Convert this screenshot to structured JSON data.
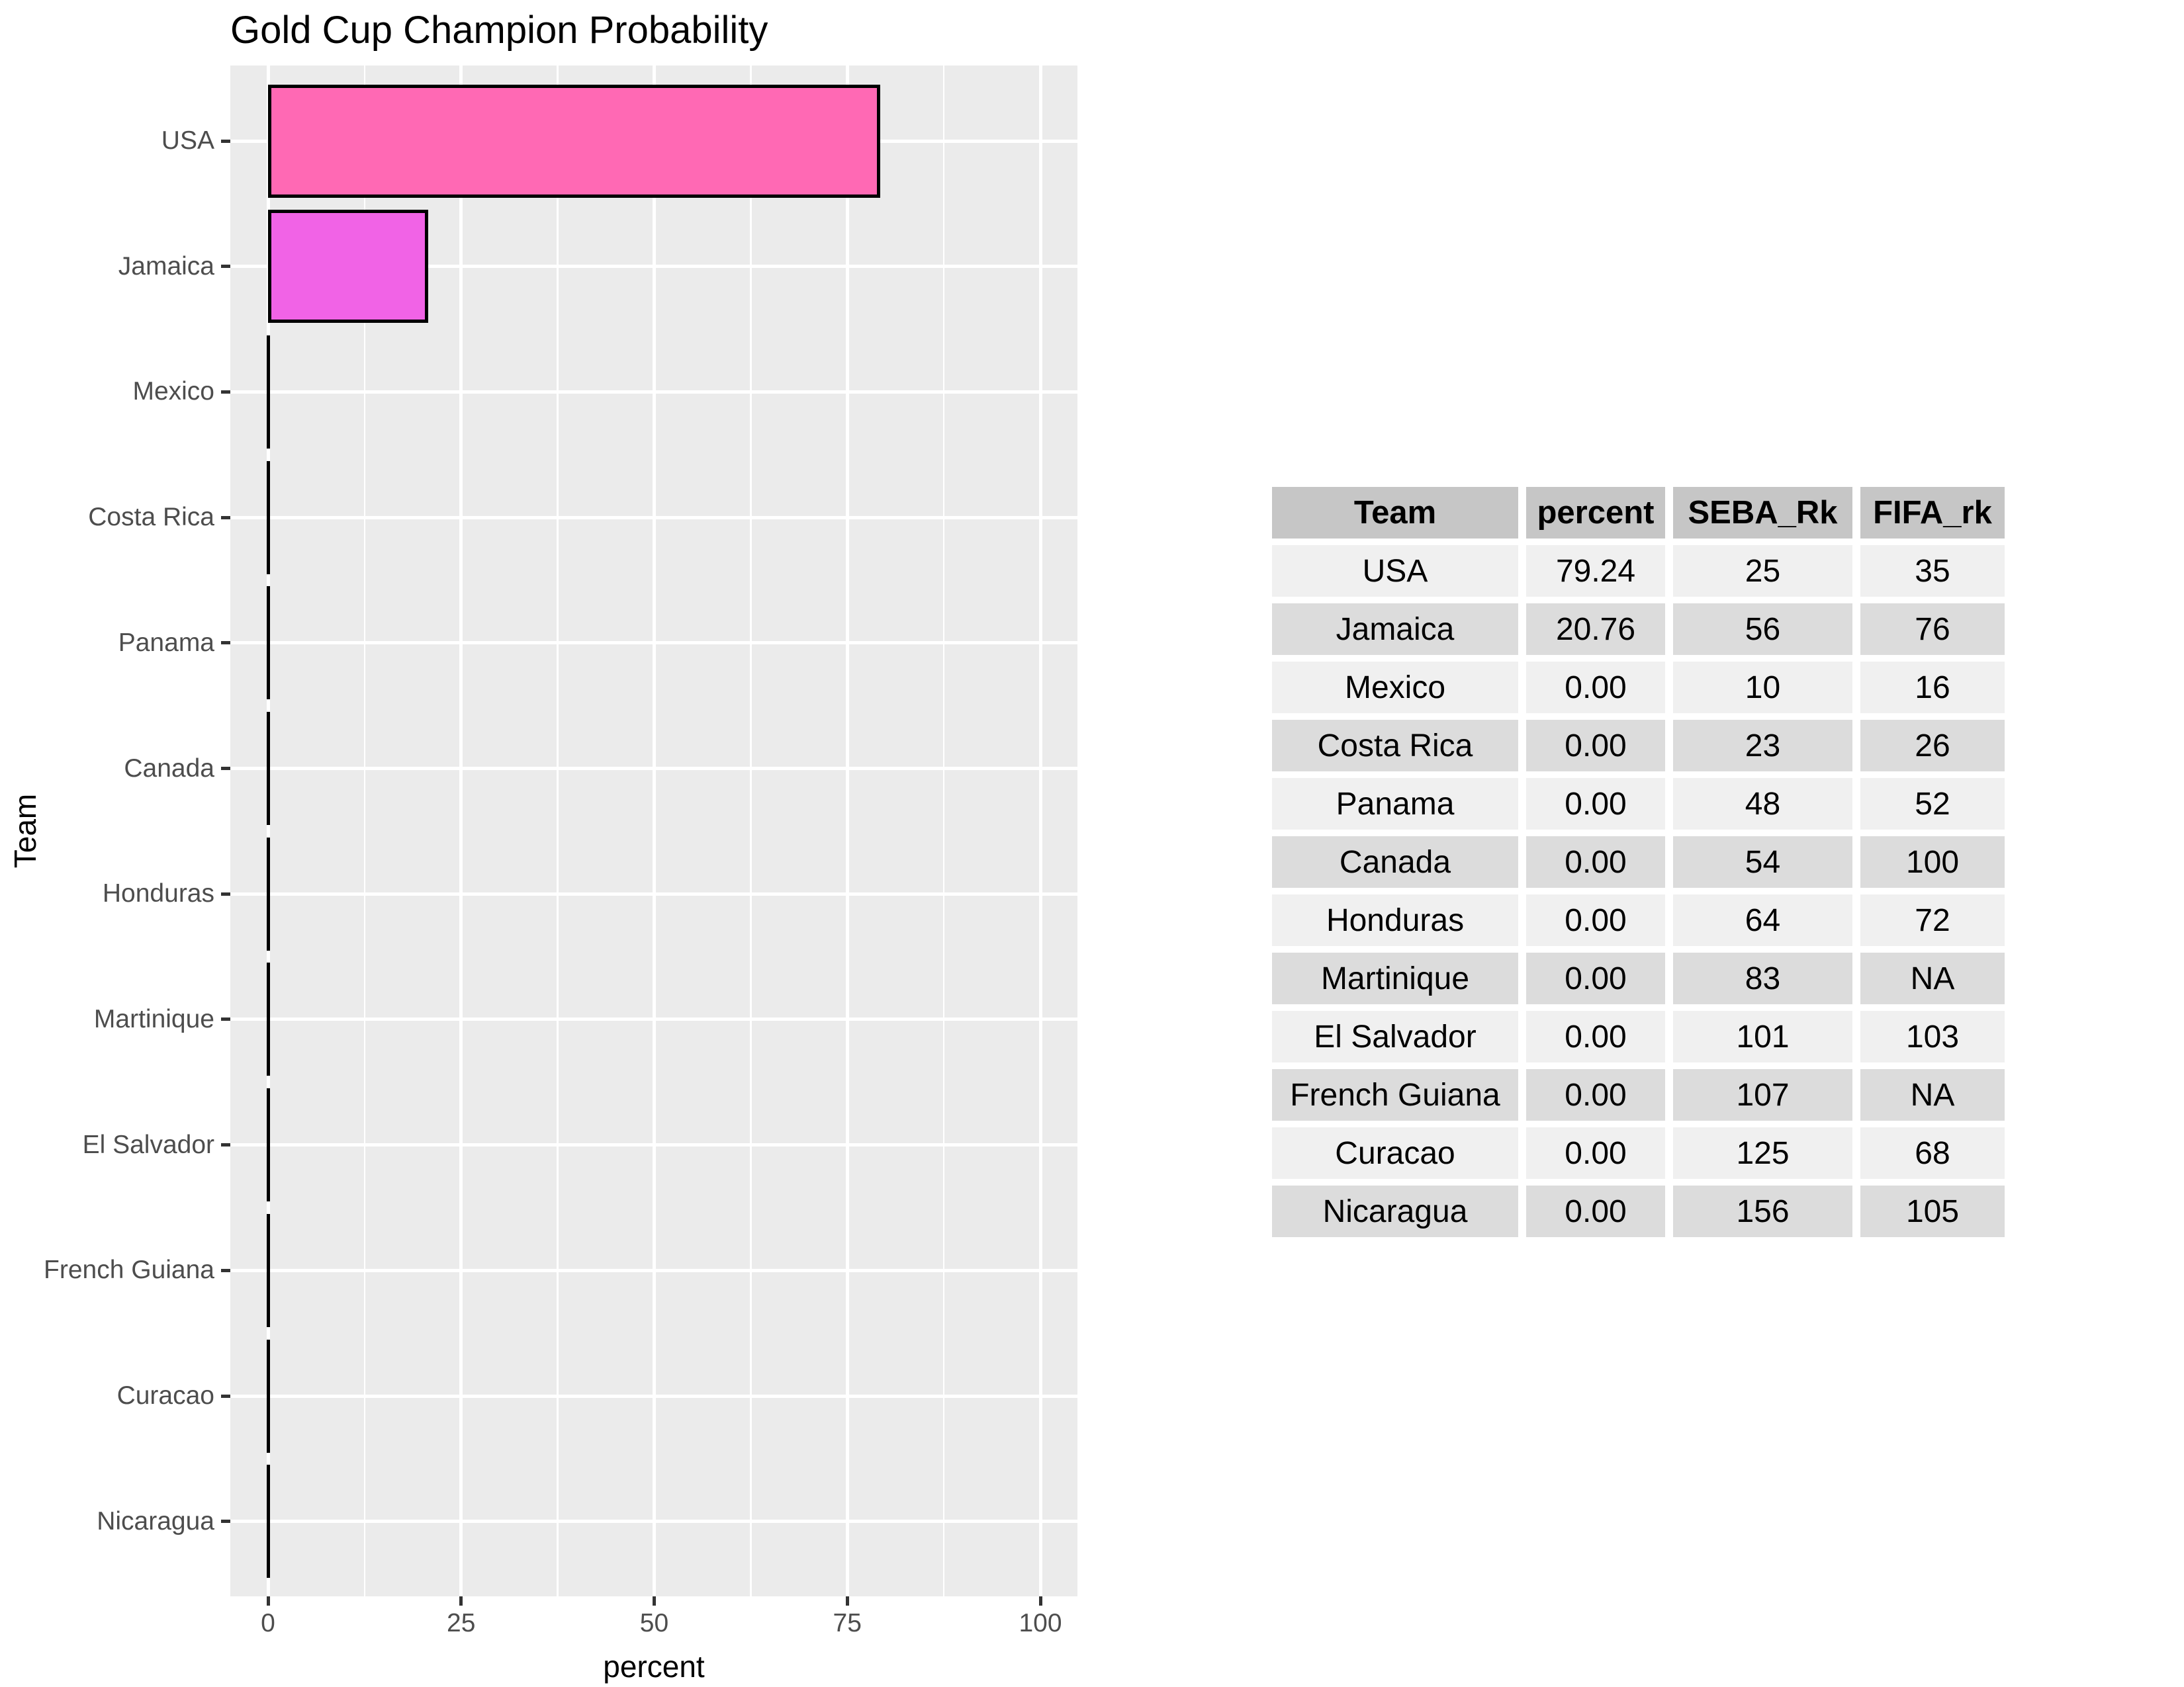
{
  "chart_data": {
    "type": "bar",
    "orientation": "horizontal",
    "title": "Gold Cup Champion Probability",
    "xlabel": "percent",
    "ylabel": "Team",
    "xlim": [
      0,
      100
    ],
    "x_major_values": [
      0,
      25,
      50,
      75,
      100
    ],
    "x_major_tick_labels": [
      "0",
      "25",
      "50",
      "75",
      "100"
    ],
    "x_minor_values": [
      12.5,
      37.5,
      62.5,
      87.5
    ],
    "grid": "white major+minor vertical, white major horizontal, on gray panel",
    "legend_position": "none",
    "panel_bg": "#EBEBEB",
    "grid_color": "#FFFFFF",
    "bar_stroke": "#000000",
    "axis_text_color": "#4D4D4D",
    "categories": [
      "USA",
      "Jamaica",
      "Mexico",
      "Costa Rica",
      "Panama",
      "Canada",
      "Honduras",
      "Martinique",
      "El Salvador",
      "French Guiana",
      "Curacao",
      "Nicaragua"
    ],
    "series": [
      {
        "team": "USA",
        "percent": 79.24,
        "fill": "#FF69B4"
      },
      {
        "team": "Jamaica",
        "percent": 20.76,
        "fill": "#F163E6"
      },
      {
        "team": "Mexico",
        "percent": 0.0,
        "fill": null
      },
      {
        "team": "Costa Rica",
        "percent": 0.0,
        "fill": null
      },
      {
        "team": "Panama",
        "percent": 0.0,
        "fill": null
      },
      {
        "team": "Canada",
        "percent": 0.0,
        "fill": null
      },
      {
        "team": "Honduras",
        "percent": 0.0,
        "fill": null
      },
      {
        "team": "Martinique",
        "percent": 0.0,
        "fill": null
      },
      {
        "team": "El Salvador",
        "percent": 0.0,
        "fill": null
      },
      {
        "team": "French Guiana",
        "percent": 0.0,
        "fill": null
      },
      {
        "team": "Curacao",
        "percent": 0.0,
        "fill": null
      },
      {
        "team": "Nicaragua",
        "percent": 0.0,
        "fill": null
      }
    ]
  },
  "table": {
    "headers": [
      "Team",
      "percent",
      "SEBA_Rk",
      "FIFA_rk"
    ],
    "rows": [
      [
        "USA",
        "79.24",
        "25",
        "35"
      ],
      [
        "Jamaica",
        "20.76",
        "56",
        "76"
      ],
      [
        "Mexico",
        "0.00",
        "10",
        "16"
      ],
      [
        "Costa Rica",
        "0.00",
        "23",
        "26"
      ],
      [
        "Panama",
        "0.00",
        "48",
        "52"
      ],
      [
        "Canada",
        "0.00",
        "54",
        "100"
      ],
      [
        "Honduras",
        "0.00",
        "64",
        "72"
      ],
      [
        "Martinique",
        "0.00",
        "83",
        "NA"
      ],
      [
        "El Salvador",
        "0.00",
        "101",
        "103"
      ],
      [
        "French Guiana",
        "0.00",
        "107",
        "NA"
      ],
      [
        "Curacao",
        "0.00",
        "125",
        "68"
      ],
      [
        "Nicaragua",
        "0.00",
        "156",
        "105"
      ]
    ],
    "colors": {
      "header_bg": "#C6C6C6",
      "row_light": "#F0F0F0",
      "row_dark": "#DCDCDC",
      "text": "#000000"
    }
  }
}
